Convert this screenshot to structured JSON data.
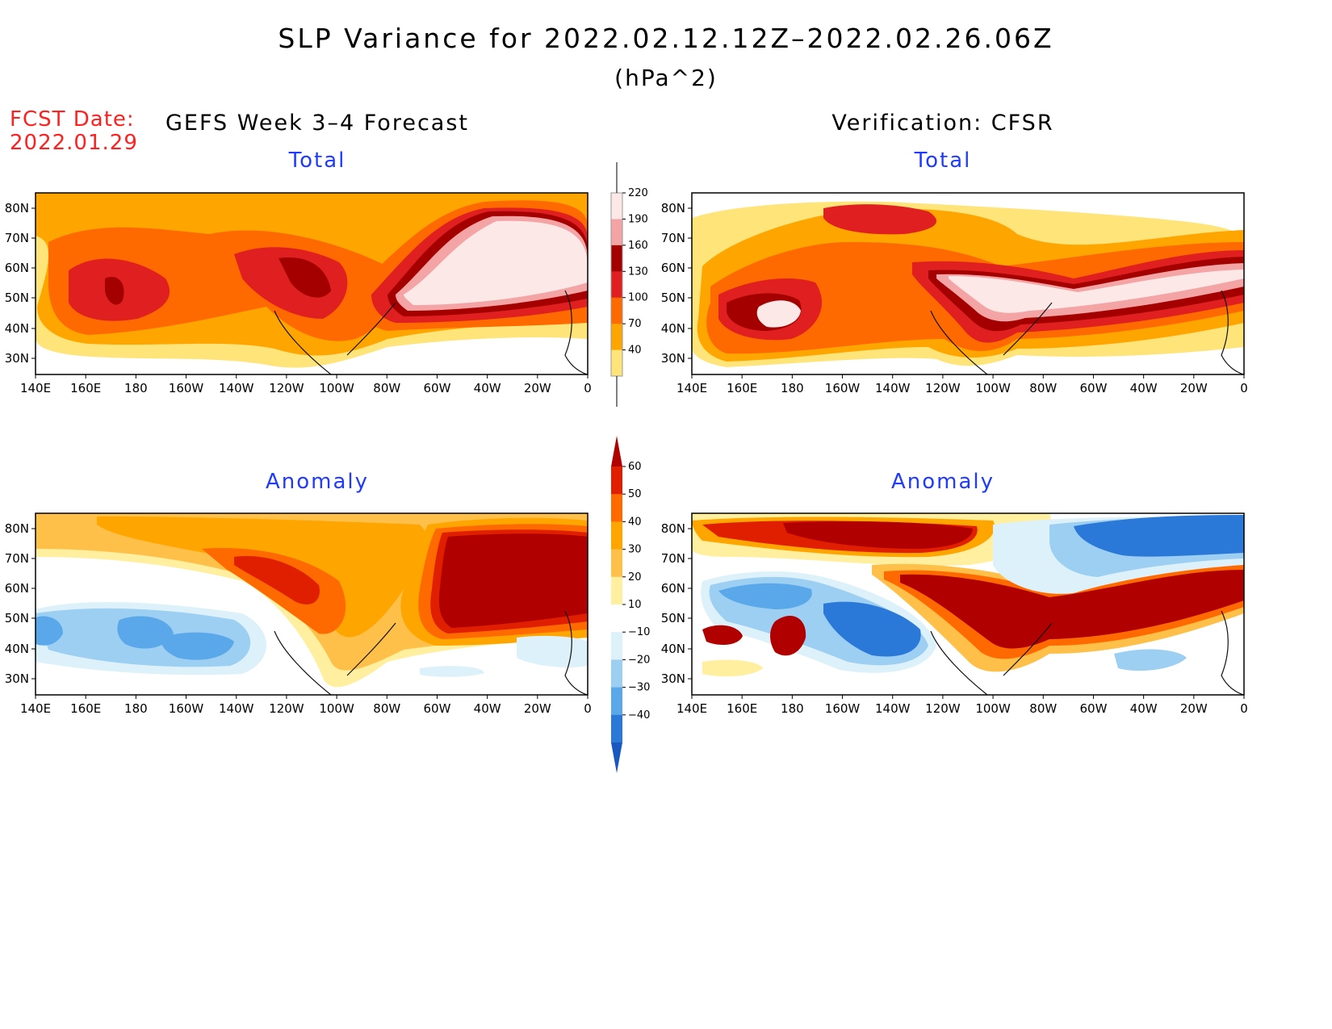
{
  "title": "SLP Variance for 2022.02.12.12Z–2022.02.26.06Z",
  "units": "(hPa^2)",
  "fcst_label": "FCST Date:",
  "fcst_date": "2022.01.29",
  "left_column": "GEFS Week 3–4 Forecast",
  "right_column": "Verification: CFSR",
  "panels": [
    {
      "id": "fcst-total",
      "subtitle": "Total"
    },
    {
      "id": "verif-total",
      "subtitle": "Total"
    },
    {
      "id": "fcst-anom",
      "subtitle": "Anomaly"
    },
    {
      "id": "verif-anom",
      "subtitle": "Anomaly"
    }
  ],
  "lat_labels": [
    "80N",
    "70N",
    "60N",
    "50N",
    "40N",
    "30N"
  ],
  "lon_labels": [
    "140E",
    "160E",
    "180",
    "160W",
    "140W",
    "120W",
    "100W",
    "80W",
    "60W",
    "40W",
    "20W",
    "0"
  ],
  "total_colorbar": {
    "labels": [
      "220",
      "190",
      "160",
      "130",
      "100",
      "70",
      "40"
    ],
    "colors": [
      "#fde8e8",
      "#f4a4a4",
      "#a40000",
      "#e02020",
      "#ff6a00",
      "#ffa500",
      "#ffe479"
    ]
  },
  "anomaly_colorbar": {
    "labels": [
      "60",
      "50",
      "40",
      "30",
      "20",
      "10",
      "−10",
      "−20",
      "−30",
      "−40"
    ],
    "colors": [
      "#b00000",
      "#e01e00",
      "#ff6a00",
      "#ffa500",
      "#ffc04a",
      "#ffef9e",
      "#ffffff",
      "#ddf1fb",
      "#9ccff2",
      "#5aa8ea",
      "#2a78d8",
      "#1858c0"
    ]
  },
  "fill_colors": {
    "t40": "#ffe479",
    "t70": "#ffa500",
    "t100": "#ff6a00",
    "t130": "#e02020",
    "t160": "#a40000",
    "t190": "#f4a4a4",
    "t220": "#fde8e8",
    "a10": "#ffef9e",
    "a20": "#ffc04a",
    "a30": "#ffa500",
    "a40": "#ff6a00",
    "a50": "#e01e00",
    "a60": "#b00000",
    "n10": "#ddf1fb",
    "n20": "#9ccff2",
    "n30": "#5aa8ea",
    "n40": "#2a78d8"
  }
}
